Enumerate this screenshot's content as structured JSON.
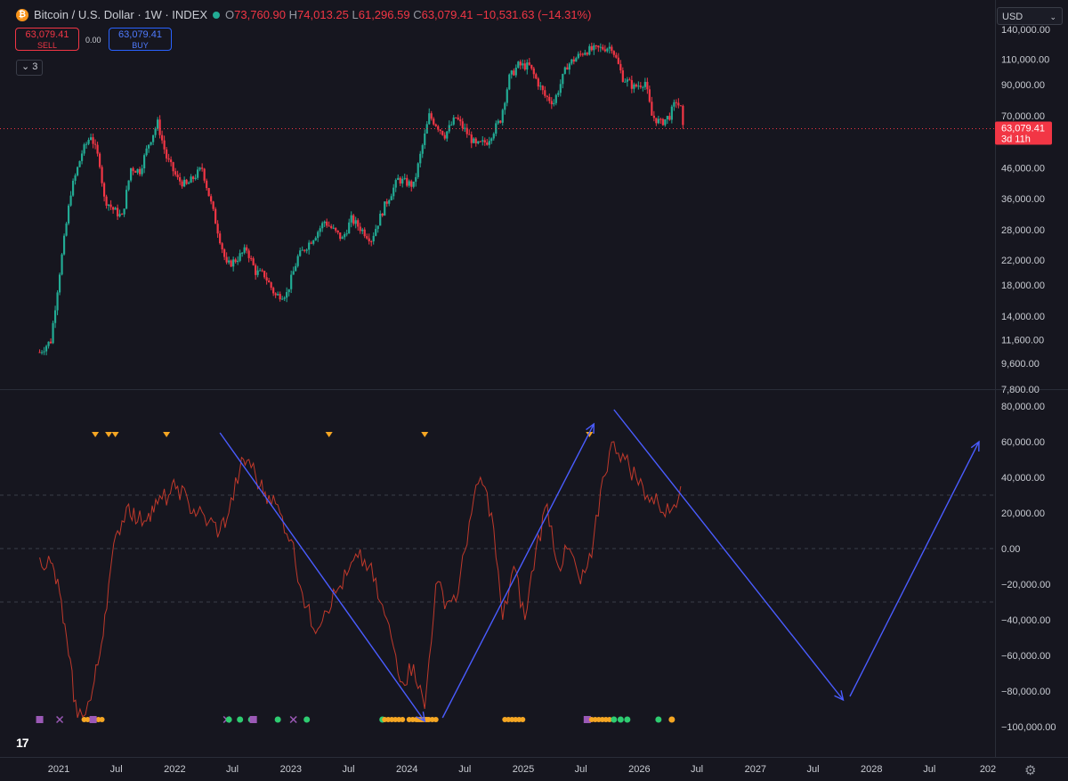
{
  "header": {
    "symbol": "Bitcoin / U.S. Dollar · 1W · INDEX",
    "coin_glyph": "₿",
    "o_label": "O",
    "o_value": "73,760.90",
    "h_label": "H",
    "h_value": "74,013.25",
    "l_label": "L",
    "l_value": "61,296.59",
    "c_label": "C",
    "c_value": "63,079.41",
    "change": "−10,531.63 (−14.31%)"
  },
  "trade": {
    "sell_price": "63,079.41",
    "sell_label": "SELL",
    "spread": "0.00",
    "buy_price": "63,079.41",
    "buy_label": "BUY"
  },
  "layers_count": "3",
  "currency": "USD",
  "colors": {
    "up": "#22ab94",
    "down": "#f23645",
    "oscillator": "#c0392b",
    "arrow": "#4a5cff",
    "signal_orange": "#f5a623",
    "signal_green": "#2ecc71",
    "signal_purple": "#9b59b6"
  },
  "chart_data": [
    {
      "type": "candlestick",
      "title": "",
      "scale": "log",
      "y_ticks": [
        7800,
        9600,
        11600,
        14000,
        18000,
        22000,
        28000,
        36000,
        46000,
        70000,
        90000,
        110000,
        140000
      ],
      "y_tick_labels": [
        "7,800.00",
        "9,600.00",
        "11,600.00",
        "14,000.00",
        "18,000.00",
        "22,000.00",
        "28,000.00",
        "36,000.00",
        "46,000.00",
        "70,000.00",
        "90,000.00",
        "110,000.00",
        "140,000.00"
      ],
      "ylim": [
        7600,
        145000
      ],
      "current_price": 63079.41,
      "price_label": "63,079.41",
      "countdown": "3d 11h",
      "close_path": [
        [
          "2020-11-02",
          10500
        ],
        [
          "2020-12-07",
          11500
        ],
        [
          "2021-01-04",
          20000
        ],
        [
          "2021-02-08",
          38000
        ],
        [
          "2021-03-15",
          52000
        ],
        [
          "2021-04-12",
          60000
        ],
        [
          "2021-05-10",
          48000
        ],
        [
          "2021-05-24",
          36000
        ],
        [
          "2021-06-21",
          33000
        ],
        [
          "2021-07-19",
          31000
        ],
        [
          "2021-08-16",
          46000
        ],
        [
          "2021-09-13",
          45000
        ],
        [
          "2021-10-11",
          56000
        ],
        [
          "2021-11-08",
          66000
        ],
        [
          "2021-12-06",
          50000
        ],
        [
          "2022-01-10",
          42000
        ],
        [
          "2022-02-07",
          40000
        ],
        [
          "2022-03-28",
          46000
        ],
        [
          "2022-05-09",
          30000
        ],
        [
          "2022-06-13",
          21000
        ],
        [
          "2022-07-11",
          22000
        ],
        [
          "2022-08-15",
          24000
        ],
        [
          "2022-09-12",
          20000
        ],
        [
          "2022-10-10",
          19500
        ],
        [
          "2022-11-14",
          16500
        ],
        [
          "2022-12-19",
          16800
        ],
        [
          "2023-01-23",
          22500
        ],
        [
          "2023-03-20",
          27000
        ],
        [
          "2023-04-17",
          30000
        ],
        [
          "2023-06-12",
          26000
        ],
        [
          "2023-07-10",
          30500
        ],
        [
          "2023-09-11",
          26000
        ],
        [
          "2023-10-23",
          34000
        ],
        [
          "2023-12-04",
          42000
        ],
        [
          "2024-01-22",
          40000
        ],
        [
          "2024-03-11",
          70000
        ],
        [
          "2024-04-29",
          60000
        ],
        [
          "2024-06-03",
          69000
        ],
        [
          "2024-08-05",
          55000
        ],
        [
          "2024-09-09",
          57000
        ],
        [
          "2024-10-21",
          68000
        ],
        [
          "2024-11-18",
          95000
        ],
        [
          "2024-12-16",
          105000
        ],
        [
          "2025-01-20",
          104000
        ],
        [
          "2025-03-10",
          82000
        ],
        [
          "2025-04-07",
          78000
        ],
        [
          "2025-05-19",
          105000
        ],
        [
          "2025-07-14",
          118000
        ],
        [
          "2025-08-11",
          119000
        ],
        [
          "2025-10-06",
          122000
        ],
        [
          "2025-11-10",
          95000
        ],
        [
          "2025-12-15",
          88000
        ],
        [
          "2026-01-19",
          92000
        ],
        [
          "2026-02-09",
          70000
        ],
        [
          "2026-03-09",
          66000
        ],
        [
          "2026-04-06",
          70000
        ],
        [
          "2026-04-27",
          79000
        ],
        [
          "2026-05-11",
          74000
        ],
        [
          "2026-05-18",
          63079
        ]
      ]
    },
    {
      "type": "line",
      "title": "",
      "y_ticks": [
        -100000,
        -80000,
        -60000,
        -40000,
        -20000,
        0,
        20000,
        40000,
        60000,
        80000
      ],
      "y_tick_labels": [
        "−100,000.00",
        "−80,000.00",
        "−60,000.00",
        "−40,000.00",
        "−20,000.00",
        "0.00",
        "20,000.00",
        "40,000.00",
        "60,000.00",
        "80,000.00"
      ],
      "ylim": [
        -105000,
        88000
      ],
      "levels": [
        30000,
        0,
        -30000
      ],
      "series": [
        {
          "x": [
            "2020-11-02",
            "2020-12-07",
            "2021-01-04",
            "2021-02-01",
            "2021-03-01",
            "2021-04-12",
            "2021-05-10",
            "2021-06-07",
            "2021-07-05",
            "2021-08-09",
            "2021-09-06",
            "2021-10-11",
            "2021-11-08",
            "2021-12-13",
            "2022-01-10",
            "2022-02-14",
            "2022-03-14",
            "2022-04-18",
            "2022-05-23",
            "2022-06-20",
            "2022-07-25",
            "2022-08-22",
            "2022-09-26",
            "2022-10-24",
            "2022-11-28",
            "2023-01-02",
            "2023-02-06",
            "2023-03-13",
            "2023-04-17",
            "2023-05-22",
            "2023-06-26",
            "2023-07-31",
            "2023-09-04",
            "2023-10-09",
            "2023-11-13",
            "2023-12-18",
            "2024-01-22",
            "2024-02-26",
            "2024-04-01",
            "2024-05-06",
            "2024-06-10",
            "2024-07-15",
            "2024-08-19",
            "2024-09-23",
            "2024-10-28",
            "2024-12-02",
            "2025-01-06",
            "2025-02-10",
            "2025-03-17",
            "2025-04-21",
            "2025-05-26",
            "2025-06-30",
            "2025-08-04",
            "2025-09-08",
            "2025-10-13",
            "2025-11-17",
            "2025-12-22",
            "2026-01-26",
            "2026-03-02",
            "2026-04-06",
            "2026-05-11"
          ],
          "values": [
            -5000,
            -8000,
            -25000,
            -60000,
            -95000,
            -85000,
            -60000,
            -20000,
            10000,
            25000,
            15000,
            20000,
            25000,
            30000,
            35000,
            25000,
            20000,
            15000,
            10000,
            20000,
            45000,
            50000,
            35000,
            30000,
            20000,
            5000,
            -25000,
            -45000,
            -35000,
            -25000,
            -15000,
            -5000,
            -10000,
            -30000,
            -50000,
            -75000,
            -65000,
            -90000,
            -20000,
            -30000,
            -25000,
            15000,
            40000,
            20000,
            -40000,
            -10000,
            -40000,
            0,
            25000,
            -10000,
            0,
            -20000,
            -5000,
            40000,
            60000,
            50000,
            40000,
            30000,
            25000,
            20000,
            35000
          ]
        }
      ],
      "markers_top": [
        "2021-04-26",
        "2021-06-07",
        "2021-06-28",
        "2021-12-06",
        "2023-05-01",
        "2024-02-26",
        "2025-07-28"
      ],
      "markers_bottom": [
        [
          "2020-11-02",
          "square",
          "purple"
        ],
        [
          "2021-01-04",
          "x",
          "purple"
        ],
        [
          "2021-03-22",
          "dots",
          "orange"
        ],
        [
          "2021-04-19",
          "square",
          "purple"
        ],
        [
          "2022-06-13",
          "x",
          "purple"
        ],
        [
          "2022-06-20",
          "dot",
          "green"
        ],
        [
          "2022-07-25",
          "dot",
          "green"
        ],
        [
          "2022-08-29",
          "dot",
          "green"
        ],
        [
          "2022-09-05",
          "square",
          "purple"
        ],
        [
          "2022-11-21",
          "dot",
          "green"
        ],
        [
          "2023-01-09",
          "x",
          "purple"
        ],
        [
          "2023-02-20",
          "dot",
          "green"
        ],
        [
          "2023-10-16",
          "dot",
          "green"
        ],
        [
          "2023-10-23",
          "dots",
          "orange"
        ],
        [
          "2024-01-08",
          "dots",
          "orange"
        ],
        [
          "2024-02-05",
          "dots",
          "orange"
        ],
        [
          "2024-11-04",
          "dots",
          "orange"
        ],
        [
          "2025-07-21",
          "square",
          "purple"
        ],
        [
          "2025-08-04",
          "dots",
          "orange"
        ],
        [
          "2025-10-13",
          "dot",
          "green"
        ],
        [
          "2025-11-03",
          "dot",
          "green"
        ],
        [
          "2025-11-24",
          "dot",
          "green"
        ],
        [
          "2026-03-02",
          "dot",
          "green"
        ],
        [
          "2026-04-13",
          "dot",
          "orange"
        ]
      ]
    }
  ],
  "trend_arrows": [
    {
      "from": [
        "2022-05-23",
        65000
      ],
      "to": [
        "2024-02-26",
        -97000
      ]
    },
    {
      "from": [
        "2024-04-22",
        -95000
      ],
      "to": [
        "2025-08-11",
        70000
      ]
    },
    {
      "from": [
        "2025-10-13",
        78000
      ],
      "to": [
        "2027-10-04",
        -85000
      ]
    },
    {
      "from": [
        "2027-10-25",
        -83000
      ],
      "to": [
        "2028-12-04",
        60000
      ]
    }
  ],
  "x_axis": {
    "ticks": [
      [
        "2021-01-01",
        "2021"
      ],
      [
        "2021-07-01",
        "Jul"
      ],
      [
        "2022-01-01",
        "2022"
      ],
      [
        "2022-07-01",
        "Jul"
      ],
      [
        "2023-01-01",
        "2023"
      ],
      [
        "2023-07-01",
        "Jul"
      ],
      [
        "2024-01-01",
        "2024"
      ],
      [
        "2024-07-01",
        "Jul"
      ],
      [
        "2025-01-01",
        "2025"
      ],
      [
        "2025-07-01",
        "Jul"
      ],
      [
        "2026-01-01",
        "2026"
      ],
      [
        "2026-07-01",
        "Jul"
      ],
      [
        "2027-01-01",
        "2027"
      ],
      [
        "2027-07-01",
        "Jul"
      ],
      [
        "2028-01-01",
        "2028"
      ],
      [
        "2028-07-01",
        "Jul"
      ],
      [
        "2029-01-01",
        "202"
      ]
    ]
  }
}
